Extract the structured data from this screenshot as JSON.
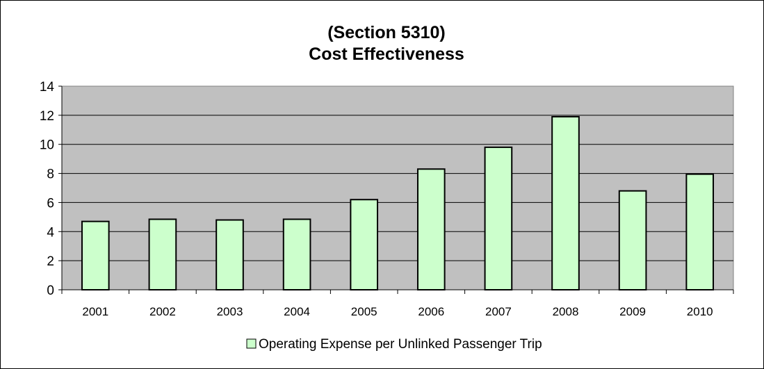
{
  "chart_data": {
    "type": "bar",
    "title_line1": "(Section 5310)",
    "title_line2": "Cost Effectiveness",
    "xlabel": "",
    "ylabel": "",
    "categories": [
      "2001",
      "2002",
      "2003",
      "2004",
      "2005",
      "2006",
      "2007",
      "2008",
      "2009",
      "2010"
    ],
    "series": [
      {
        "name": "Operating Expense per Unlinked Passenger Trip",
        "values": [
          4.7,
          4.85,
          4.8,
          4.85,
          6.2,
          8.3,
          9.8,
          11.9,
          6.8,
          7.95
        ],
        "color": "#ccffcc"
      }
    ],
    "ylim": [
      0,
      14
    ],
    "yticks": [
      "0",
      "2",
      "4",
      "6",
      "8",
      "10",
      "12",
      "14"
    ],
    "grid": true,
    "legend_position": "bottom",
    "plot_background": "#c0c0c0"
  }
}
